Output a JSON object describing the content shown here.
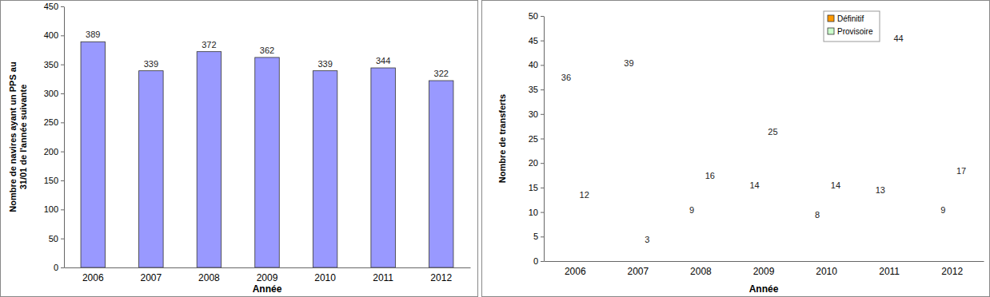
{
  "chart_data": [
    {
      "type": "bar",
      "categories": [
        "2006",
        "2007",
        "2008",
        "2009",
        "2010",
        "2011",
        "2012"
      ],
      "values": [
        389,
        339,
        372,
        362,
        339,
        344,
        322
      ],
      "color": "#9999ff",
      "x_label": "Année",
      "y_label": "Nombre de navires ayant un PPS au 31/01 de l'année suivante",
      "ylim": [
        0,
        450
      ],
      "yticks": [
        0,
        50,
        100,
        150,
        200,
        250,
        300,
        350,
        400,
        450
      ],
      "data_labels": true,
      "grid": false
    },
    {
      "type": "bar",
      "categories": [
        "2006",
        "2007",
        "2008",
        "2009",
        "2010",
        "2011",
        "2012"
      ],
      "series": [
        {
          "name": "Définitif",
          "color": "#ff9900",
          "values": [
            36,
            39,
            9,
            14,
            8,
            13,
            9
          ]
        },
        {
          "name": "Provisoire",
          "color": "#ccffcc",
          "values": [
            12,
            3,
            16,
            25,
            14,
            44,
            17
          ]
        }
      ],
      "x_label": "Année",
      "y_label": "Nombre de transferts",
      "ylim": [
        0,
        50
      ],
      "yticks": [
        0,
        5,
        10,
        15,
        20,
        25,
        30,
        35,
        40,
        45,
        50
      ],
      "legend": "upper right",
      "data_labels": true,
      "grid": false
    }
  ]
}
